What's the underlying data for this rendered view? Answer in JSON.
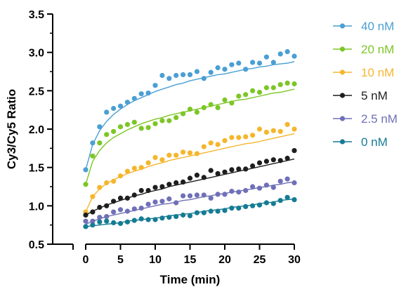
{
  "chart_data": {
    "type": "scatter",
    "title": "",
    "xlabel": "Time (min)",
    "ylabel": "Cy3/Cy5 Ratio",
    "xlim": [
      0,
      30
    ],
    "ylim": [
      0.5,
      3.5
    ],
    "x_ticks": [
      0,
      5,
      10,
      15,
      20,
      25,
      30
    ],
    "y_ticks": [
      0.5,
      1.0,
      1.5,
      2.0,
      2.5,
      3.0,
      3.5
    ],
    "x_tick_labels": [
      "0",
      "5",
      "10",
      "15",
      "20",
      "25",
      "30"
    ],
    "y_tick_labels": [
      "0.5",
      "1.0",
      "1.5",
      "2.0",
      "2.5",
      "3.0",
      "3.5"
    ],
    "grid": false,
    "legend_position": "right",
    "x": [
      0,
      1,
      2,
      3,
      4,
      5,
      6,
      7,
      8,
      9,
      10,
      11,
      12,
      13,
      14,
      15,
      16,
      17,
      18,
      19,
      20,
      21,
      22,
      23,
      24,
      25,
      26,
      27,
      28,
      29,
      30
    ],
    "series": [
      {
        "name": "40 nM",
        "color": "#4A9FD4",
        "values": [
          1.47,
          1.82,
          2.03,
          2.22,
          2.27,
          2.3,
          2.35,
          2.4,
          2.46,
          2.47,
          2.57,
          2.7,
          2.66,
          2.7,
          2.71,
          2.71,
          2.75,
          2.66,
          2.74,
          2.8,
          2.78,
          2.84,
          2.86,
          2.78,
          2.87,
          2.86,
          2.94,
          2.87,
          2.98,
          3.01,
          2.95
        ],
        "fit": [
          1.47,
          1.8,
          1.98,
          2.1,
          2.19,
          2.26,
          2.32,
          2.37,
          2.41,
          2.45,
          2.49,
          2.52,
          2.55,
          2.58,
          2.6,
          2.63,
          2.65,
          2.67,
          2.69,
          2.71,
          2.72,
          2.74,
          2.76,
          2.78,
          2.79,
          2.81,
          2.82,
          2.84,
          2.85,
          2.86,
          2.88
        ]
      },
      {
        "name": "20 nM",
        "color": "#7DC626",
        "values": [
          1.28,
          1.65,
          1.82,
          1.93,
          1.97,
          2.03,
          2.06,
          2.09,
          2.01,
          2.02,
          2.07,
          2.11,
          2.11,
          2.15,
          2.2,
          2.26,
          2.22,
          2.28,
          2.32,
          2.28,
          2.38,
          2.34,
          2.43,
          2.45,
          2.5,
          2.48,
          2.54,
          2.54,
          2.58,
          2.6,
          2.59
        ],
        "fit": [
          1.28,
          1.58,
          1.72,
          1.82,
          1.89,
          1.94,
          1.99,
          2.03,
          2.07,
          2.1,
          2.13,
          2.15,
          2.18,
          2.2,
          2.22,
          2.24,
          2.26,
          2.28,
          2.3,
          2.32,
          2.34,
          2.36,
          2.38,
          2.39,
          2.41,
          2.43,
          2.45,
          2.47,
          2.48,
          2.5,
          2.52
        ]
      },
      {
        "name": "10 nM",
        "color": "#F5B62D",
        "values": [
          0.92,
          1.12,
          1.24,
          1.3,
          1.32,
          1.39,
          1.45,
          1.49,
          1.5,
          1.56,
          1.63,
          1.6,
          1.66,
          1.66,
          1.7,
          1.69,
          1.68,
          1.77,
          1.82,
          1.8,
          1.85,
          1.89,
          1.89,
          1.9,
          1.92,
          2.0,
          1.96,
          1.98,
          1.97,
          2.06,
          2.0
        ],
        "fit": [
          0.92,
          1.12,
          1.22,
          1.29,
          1.34,
          1.38,
          1.42,
          1.45,
          1.48,
          1.51,
          1.54,
          1.56,
          1.59,
          1.61,
          1.63,
          1.65,
          1.67,
          1.69,
          1.71,
          1.73,
          1.75,
          1.77,
          1.79,
          1.81,
          1.82,
          1.84,
          1.86,
          1.88,
          1.9,
          1.92,
          1.94
        ]
      },
      {
        "name": "5 nM",
        "color": "#1E1E1E",
        "values": [
          0.88,
          0.92,
          0.98,
          1.0,
          1.06,
          1.1,
          1.1,
          1.14,
          1.2,
          1.2,
          1.24,
          1.25,
          1.28,
          1.3,
          1.31,
          1.36,
          1.4,
          1.37,
          1.46,
          1.42,
          1.44,
          1.47,
          1.48,
          1.48,
          1.52,
          1.56,
          1.58,
          1.6,
          1.59,
          1.62,
          1.72
        ],
        "fit": [
          0.88,
          0.93,
          0.97,
          1.01,
          1.04,
          1.07,
          1.1,
          1.13,
          1.15,
          1.18,
          1.2,
          1.22,
          1.25,
          1.27,
          1.29,
          1.31,
          1.33,
          1.35,
          1.37,
          1.39,
          1.41,
          1.43,
          1.45,
          1.47,
          1.49,
          1.51,
          1.53,
          1.55,
          1.57,
          1.59,
          1.61
        ]
      },
      {
        "name": "2.5 nM",
        "color": "#7070B8",
        "values": [
          0.8,
          0.8,
          0.85,
          0.86,
          0.92,
          0.95,
          0.93,
          0.96,
          0.97,
          1.02,
          1.05,
          1.06,
          1.09,
          1.04,
          1.13,
          1.13,
          1.14,
          1.14,
          1.1,
          1.15,
          1.15,
          1.19,
          1.18,
          1.2,
          1.25,
          1.23,
          1.27,
          1.24,
          1.32,
          1.35,
          1.3
        ],
        "fit": [
          0.76,
          0.8,
          0.83,
          0.86,
          0.88,
          0.9,
          0.92,
          0.94,
          0.96,
          0.98,
          1.0,
          1.02,
          1.03,
          1.05,
          1.07,
          1.08,
          1.1,
          1.12,
          1.13,
          1.15,
          1.16,
          1.18,
          1.19,
          1.21,
          1.22,
          1.24,
          1.25,
          1.27,
          1.28,
          1.3,
          1.31
        ]
      },
      {
        "name": "0 nM",
        "color": "#157C94",
        "values": [
          0.73,
          0.75,
          0.79,
          0.8,
          0.78,
          0.77,
          0.79,
          0.81,
          0.83,
          0.82,
          0.82,
          0.84,
          0.85,
          0.86,
          0.88,
          0.87,
          0.91,
          0.91,
          0.93,
          0.93,
          0.94,
          0.97,
          0.97,
          0.99,
          1.0,
          1.01,
          1.04,
          1.03,
          1.07,
          1.11,
          1.08
        ],
        "fit": [
          0.73,
          0.74,
          0.75,
          0.76,
          0.77,
          0.78,
          0.8,
          0.81,
          0.82,
          0.83,
          0.84,
          0.85,
          0.87,
          0.88,
          0.89,
          0.9,
          0.91,
          0.93,
          0.94,
          0.95,
          0.96,
          0.98,
          0.99,
          1.0,
          1.01,
          1.03,
          1.04,
          1.05,
          1.07,
          1.08,
          1.09
        ]
      }
    ]
  }
}
